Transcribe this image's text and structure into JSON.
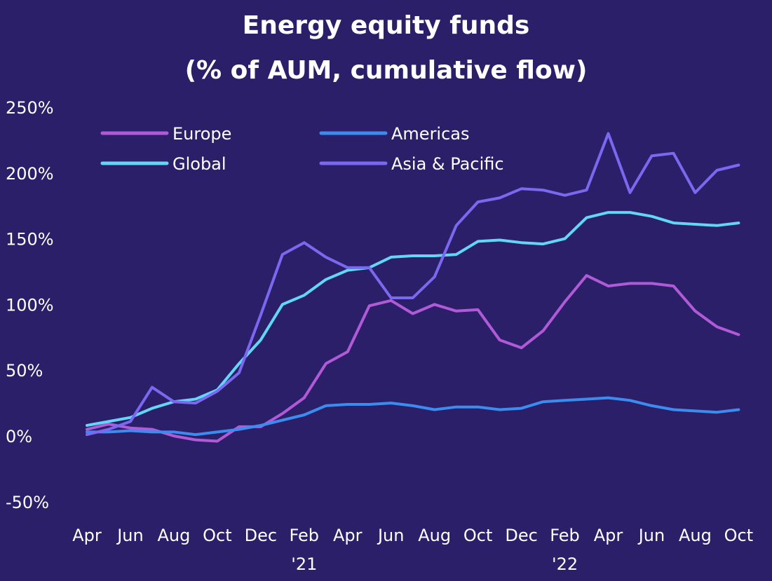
{
  "chart_data": {
    "type": "line",
    "title_lines": [
      "Energy equity funds",
      "(% of AUM, cumulative flow)"
    ],
    "xlabel": "",
    "ylabel": "",
    "ylim": [
      -50,
      250
    ],
    "yticks": [
      "250%",
      "200%",
      "150%",
      "100%",
      "50%",
      "0%",
      "-50%"
    ],
    "ytick_values": [
      250,
      200,
      150,
      100,
      50,
      0,
      -50
    ],
    "xtick_labels": [
      "Apr",
      "Jun",
      "Aug",
      "Oct",
      "Dec",
      "Feb",
      "Apr",
      "Jun",
      "Aug",
      "Oct",
      "Dec",
      "Feb",
      "Apr",
      "Jun",
      "Aug",
      "Oct"
    ],
    "year_labels": [
      {
        "label": "'21",
        "month_index": 10
      },
      {
        "label": "'22",
        "month_index": 22
      }
    ],
    "legend_position": "top-left",
    "grid": false,
    "series": [
      {
        "name": "Europe",
        "color": "#b15ad8",
        "values": [
          5,
          9,
          6,
          5,
          0,
          -3,
          -4,
          7,
          7,
          17,
          29,
          55,
          64,
          99,
          103,
          93,
          100,
          95,
          96,
          73,
          67,
          80,
          102,
          122,
          114,
          116,
          116,
          114,
          95,
          83,
          77
        ]
      },
      {
        "name": "Americas",
        "color": "#3c8cf0",
        "values": [
          3,
          3,
          4,
          3,
          3,
          1,
          3,
          5,
          8,
          12,
          16,
          23,
          24,
          24,
          25,
          23,
          20,
          22,
          22,
          20,
          21,
          26,
          27,
          28,
          29,
          27,
          23,
          20,
          19,
          18,
          20
        ]
      },
      {
        "name": "Global",
        "color": "#62d6f4",
        "values": [
          8,
          11,
          14,
          21,
          26,
          28,
          35,
          55,
          73,
          100,
          107,
          119,
          126,
          128,
          136,
          137,
          137,
          138,
          148,
          149,
          147,
          146,
          150,
          166,
          170,
          170,
          167,
          162,
          161,
          160,
          162
        ]
      },
      {
        "name": "Asia & Pacific",
        "color": "#7b68f0",
        "values": [
          1,
          5,
          11,
          37,
          26,
          25,
          34,
          48,
          92,
          138,
          147,
          136,
          128,
          128,
          105,
          105,
          121,
          160,
          178,
          181,
          188,
          187,
          183,
          187,
          230,
          185,
          213,
          215,
          185,
          202,
          206
        ]
      }
    ]
  }
}
